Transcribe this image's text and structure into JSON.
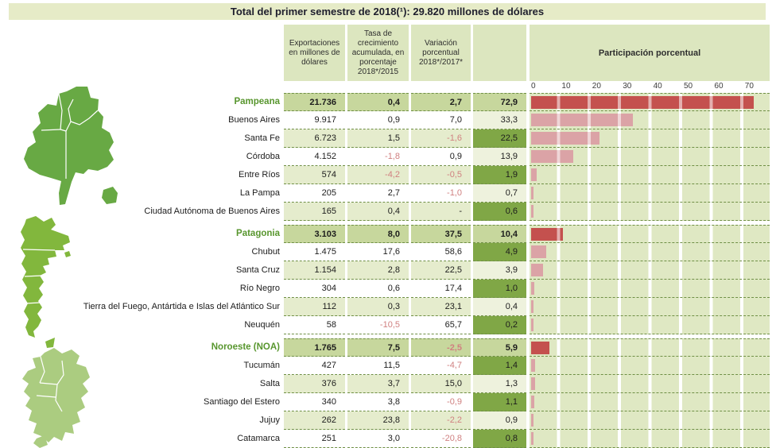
{
  "title": "Total del primer semestre de 2018(¹): 29.820 millones de dólares",
  "header": {
    "exports": "Exportaciones en millones de dólares",
    "growth": "Tasa de crecimiento acumulada, en porcentaje 2018*/2015",
    "variation": "Variación porcentual 2018*/2017*",
    "participation": "Participación porcentual"
  },
  "axis_ticks": [
    "0",
    "10",
    "20",
    "30",
    "40",
    "50",
    "60",
    "70"
  ],
  "colors": {
    "title_bar_bg": "#e6ebc7",
    "header_box_bg": "#dce6bf",
    "region_row_bg": "#c7d79d",
    "alt_row_bg": "#e5eccd",
    "participation_dark_cell": "#80a746",
    "participation_light_cell": "#eef2dd",
    "chart_stripe": "#dfe8c3",
    "region_bar": "#c4514e",
    "province_bar": "#dba3a6",
    "region_label_text": "#58962e",
    "negative_text": "#d08080",
    "map_pampeana": "#68a944",
    "map_patagonia": "#82b73d",
    "map_noa": "#abcc80"
  },
  "groups": [
    {
      "name": "Pampeana",
      "rows": [
        {
          "name": "Pampeana",
          "exports": "21.736",
          "growth": "0,4",
          "variation": "2,7",
          "participation": "72,9",
          "p": 72.9,
          "is_region": true
        },
        {
          "name": "Buenos Aires",
          "exports": "9.917",
          "growth": "0,9",
          "variation": "7,0",
          "participation": "33,3",
          "p": 33.3,
          "shade": "plain",
          "pshade": "light"
        },
        {
          "name": "Santa Fe",
          "exports": "6.723",
          "growth": "1,5",
          "variation": "-1,6",
          "participation": "22,5",
          "p": 22.5,
          "shade": "alt",
          "pshade": "dark"
        },
        {
          "name": "Córdoba",
          "exports": "4.152",
          "growth": "-1,8",
          "variation": "0,9",
          "participation": "13,9",
          "p": 13.9,
          "shade": "plain",
          "pshade": "light"
        },
        {
          "name": "Entre Ríos",
          "exports": "574",
          "growth": "-4,2",
          "variation": "-0,5",
          "participation": "1,9",
          "p": 1.9,
          "shade": "alt",
          "pshade": "dark"
        },
        {
          "name": "La Pampa",
          "exports": "205",
          "growth": "2,7",
          "variation": "-1,0",
          "participation": "0,7",
          "p": 0.7,
          "shade": "plain",
          "pshade": "light"
        },
        {
          "name": "Ciudad Autónoma de Buenos Aires",
          "exports": "165",
          "growth": "0,4",
          "variation": "-",
          "participation": "0,6",
          "p": 0.6,
          "shade": "alt",
          "pshade": "dark"
        }
      ]
    },
    {
      "name": "Patagonia",
      "rows": [
        {
          "name": "Patagonia",
          "exports": "3.103",
          "growth": "8,0",
          "variation": "37,5",
          "participation": "10,4",
          "p": 10.4,
          "is_region": true
        },
        {
          "name": "Chubut",
          "exports": "1.475",
          "growth": "17,6",
          "variation": "58,6",
          "participation": "4,9",
          "p": 4.9,
          "shade": "plain",
          "pshade": "dark"
        },
        {
          "name": "Santa Cruz",
          "exports": "1.154",
          "growth": "2,8",
          "variation": "22,5",
          "participation": "3,9",
          "p": 3.9,
          "shade": "alt",
          "pshade": "light"
        },
        {
          "name": "Río Negro",
          "exports": "304",
          "growth": "0,6",
          "variation": "17,4",
          "participation": "1,0",
          "p": 1.0,
          "shade": "plain",
          "pshade": "dark"
        },
        {
          "name": "Tierra del Fuego, Antártida e Islas  del Atlántico Sur",
          "exports": "112",
          "growth": "0,3",
          "variation": "23,1",
          "participation": "0,4",
          "p": 0.4,
          "shade": "alt",
          "pshade": "light"
        },
        {
          "name": "Neuquén",
          "exports": "58",
          "growth": "-10,5",
          "variation": "65,7",
          "participation": "0,2",
          "p": 0.2,
          "shade": "plain",
          "pshade": "dark"
        }
      ]
    },
    {
      "name": "Noroeste (NOA)",
      "rows": [
        {
          "name": "Noroeste (NOA)",
          "exports": "1.765",
          "growth": "7,5",
          "variation": "-2,5",
          "participation": "5,9",
          "p": 5.9,
          "is_region": true
        },
        {
          "name": "Tucumán",
          "exports": "427",
          "growth": "11,5",
          "variation": "-4,7",
          "participation": "1,4",
          "p": 1.4,
          "shade": "plain",
          "pshade": "dark"
        },
        {
          "name": "Salta",
          "exports": "376",
          "growth": "3,7",
          "variation": "15,0",
          "participation": "1,3",
          "p": 1.3,
          "shade": "alt",
          "pshade": "light"
        },
        {
          "name": "Santiago del Estero",
          "exports": "340",
          "growth": "3,8",
          "variation": "-0,9",
          "participation": "1,1",
          "p": 1.1,
          "shade": "plain",
          "pshade": "dark"
        },
        {
          "name": "Jujuy",
          "exports": "262",
          "growth": "23,8",
          "variation": "-2,2",
          "participation": "0,9",
          "p": 0.9,
          "shade": "alt",
          "pshade": "light"
        },
        {
          "name": "Catamarca",
          "exports": "251",
          "growth": "3,0",
          "variation": "-20,8",
          "participation": "0,8",
          "p": 0.8,
          "shade": "plain",
          "pshade": "dark"
        }
      ]
    }
  ],
  "chart_data": {
    "type": "bar",
    "orientation": "horizontal",
    "title": "Participación porcentual",
    "subtitle": "Total del primer semestre de 2018(¹): 29.820 millones de dólares",
    "xlim": [
      0,
      78
    ],
    "gridlines": [
      0,
      10,
      20,
      30,
      40,
      50,
      60,
      70
    ],
    "legend_position": "none",
    "categories": [
      "Pampeana",
      "Buenos Aires",
      "Santa Fe",
      "Córdoba",
      "Entre Ríos",
      "La Pampa",
      "Ciudad Autónoma de Buenos Aires",
      "Patagonia",
      "Chubut",
      "Santa Cruz",
      "Río Negro",
      "Tierra del Fuego, Antártida e Islas del Atlántico Sur",
      "Neuquén",
      "Noroeste (NOA)",
      "Tucumán",
      "Salta",
      "Santiago del Estero",
      "Jujuy",
      "Catamarca"
    ],
    "values": [
      72.9,
      33.3,
      22.5,
      13.9,
      1.9,
      0.7,
      0.6,
      10.4,
      4.9,
      3.9,
      1.0,
      0.4,
      0.2,
      5.9,
      1.4,
      1.3,
      1.1,
      0.9,
      0.8
    ],
    "bar_color_region": "#c4514e",
    "bar_color_province": "#dba3a6"
  }
}
